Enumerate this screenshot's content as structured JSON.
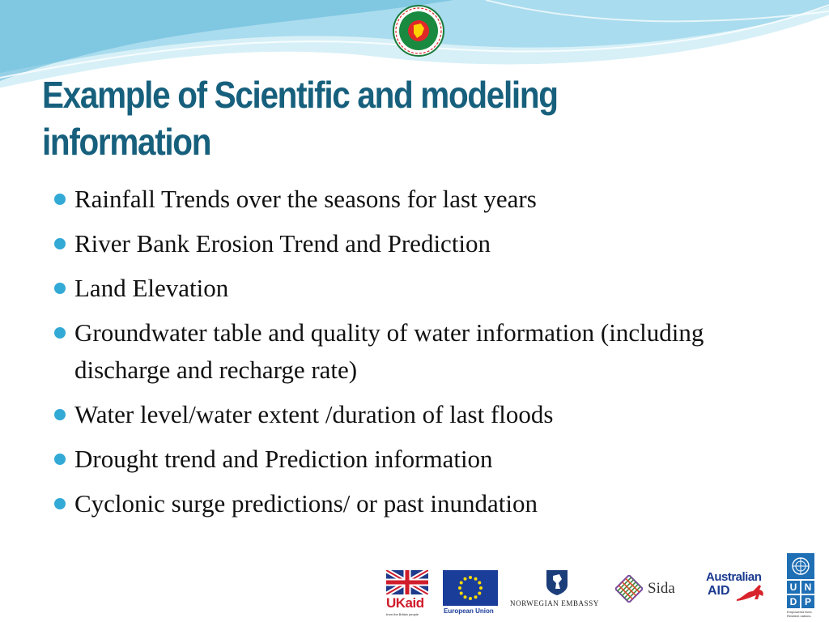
{
  "slide": {
    "title_line1": "Example of Scientific and modeling",
    "title_line2": "information",
    "bullets": [
      {
        "text": "Rainfall Trends over the seasons for last years"
      },
      {
        "text": "River Bank Erosion Trend and Prediction"
      },
      {
        "text": "Land Elevation"
      },
      {
        "text": "Groundwater table and quality of water information (including discharge and recharge rate)"
      },
      {
        "text": "Water level/water extent /duration of last floods"
      },
      {
        "text": "Drought trend and Prediction information"
      },
      {
        "text": "Cyclonic surge predictions/ or past inundation"
      }
    ]
  },
  "logos": {
    "ukaid_text": "UKaid",
    "ukaid_tagline": "from the British people",
    "eu_text": "European Union",
    "norway_text": "NORWEGIAN EMBASSY",
    "sida_text": "Sida",
    "australian_aid_line1": "Australian",
    "australian_aid_line2": "AID",
    "undp_letters": [
      "U",
      "N",
      "D",
      "P"
    ],
    "undp_tagline": "Empowered lives. Resilient nations."
  },
  "colors": {
    "title": "#17607d",
    "bullet_dot": "#33a9d6",
    "wave_light": "#bfe6f2",
    "wave_dark": "#5fb7d9"
  },
  "icons": {
    "government_seal": "bangladesh-government-seal-icon",
    "bullet": "bullet-dot-icon"
  }
}
